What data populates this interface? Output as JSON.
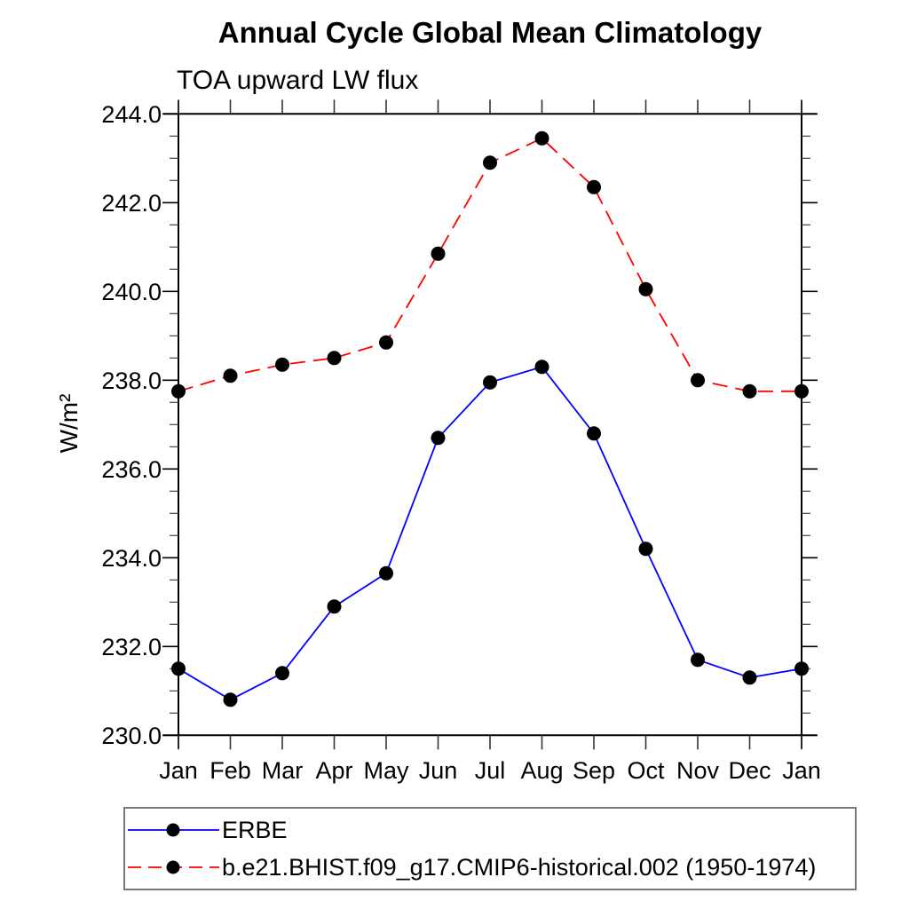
{
  "chart_data": {
    "type": "line",
    "title": "Annual Cycle Global Mean Climatology",
    "subtitle": "TOA upward LW flux",
    "ylabel": "W/m²",
    "xlabel": "",
    "categories": [
      "Jan",
      "Feb",
      "Mar",
      "Apr",
      "May",
      "Jun",
      "Jul",
      "Aug",
      "Sep",
      "Oct",
      "Nov",
      "Dec",
      "Jan"
    ],
    "series": [
      {
        "name": "ERBE",
        "line_style": "solid",
        "color": "#0000ff",
        "marker": "filled-circle",
        "marker_color": "#000000",
        "values": [
          231.5,
          230.8,
          231.4,
          232.9,
          233.65,
          236.7,
          237.95,
          238.3,
          236.8,
          234.2,
          231.7,
          231.3,
          231.5
        ]
      },
      {
        "name": "b.e21.BHIST.f09_g17.CMIP6-historical.002 (1950-1974)",
        "line_style": "dashed",
        "color": "#ff0000",
        "marker": "filled-circle",
        "marker_color": "#000000",
        "values": [
          237.75,
          238.1,
          238.35,
          238.5,
          238.85,
          240.85,
          242.9,
          243.45,
          242.35,
          240.05,
          238.0,
          237.75,
          237.75
        ]
      }
    ],
    "ylim": [
      230.0,
      244.0
    ],
    "ytick_major_step": 2.0,
    "ytick_minor_step": 0.5,
    "ytick_label_format": "one-decimal",
    "grid": false,
    "legend_position": "bottom-left",
    "frame_color": "#000000",
    "background_color": "#ffffff"
  }
}
